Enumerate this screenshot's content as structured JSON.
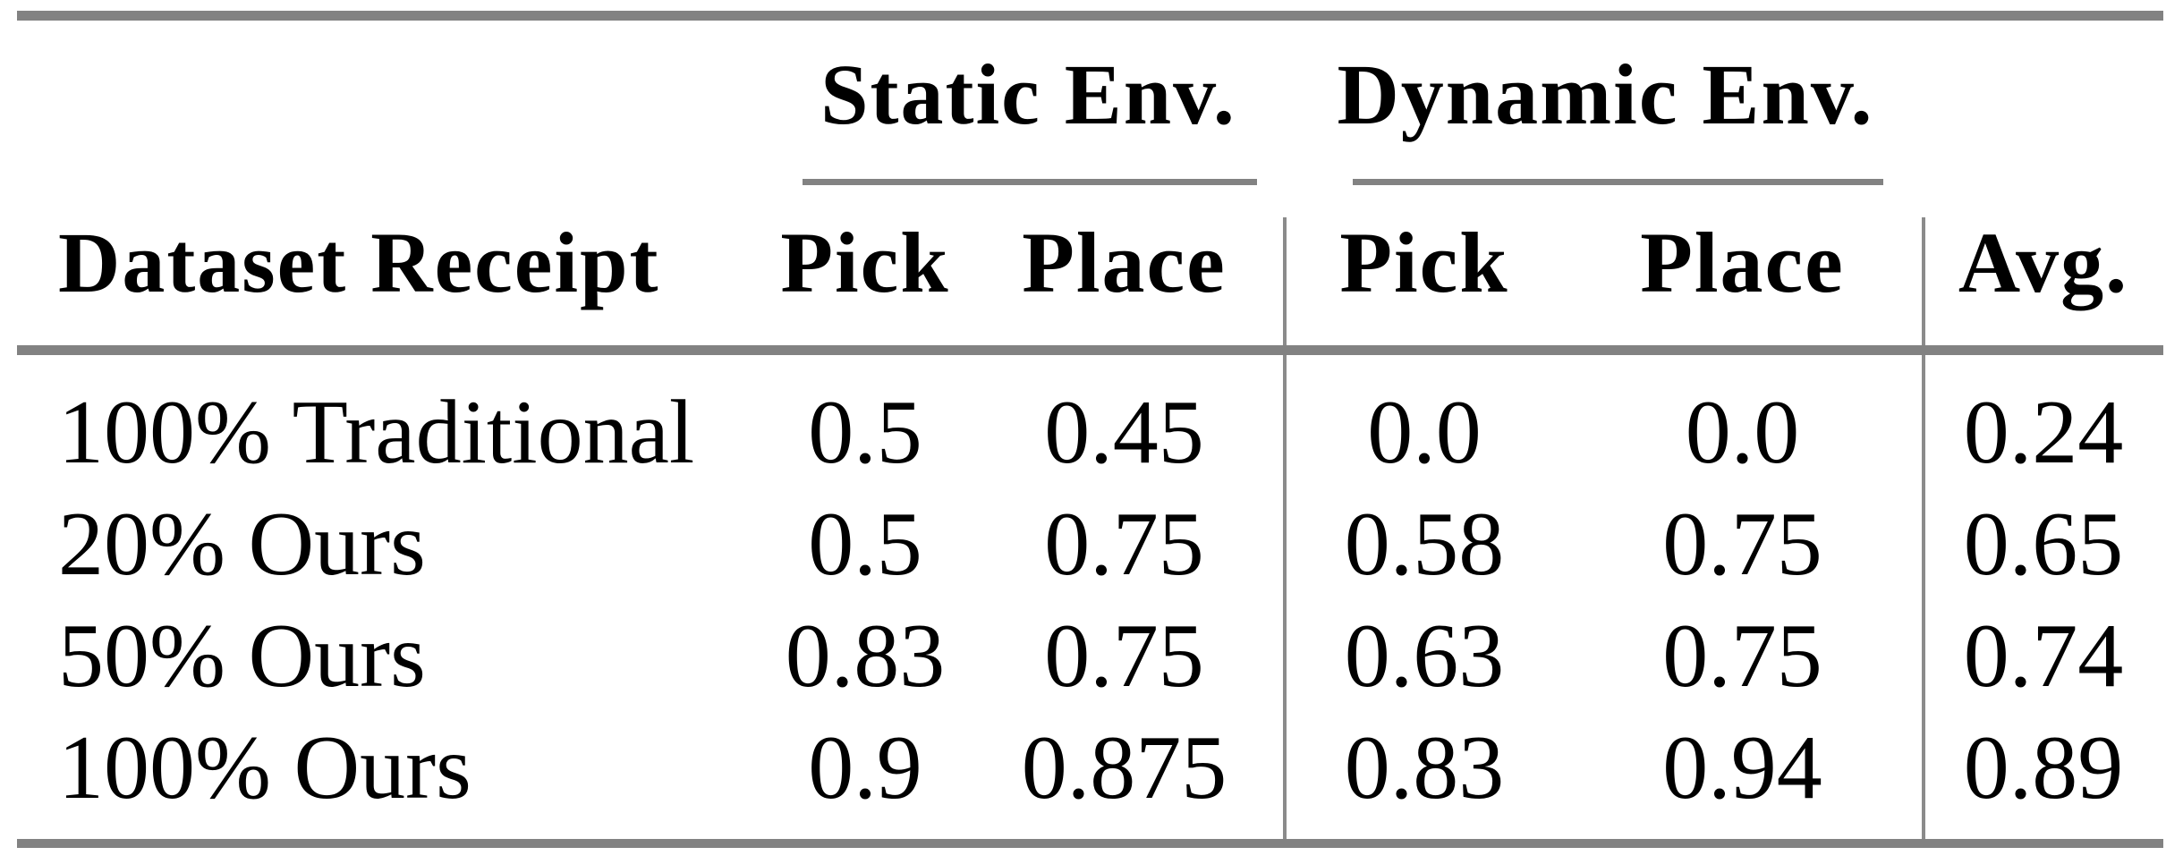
{
  "table": {
    "column_groups": [
      {
        "label": "Static Env."
      },
      {
        "label": "Dynamic Env."
      }
    ],
    "headers": {
      "row_label": "Dataset Receipt",
      "static_pick": "Pick",
      "static_place": "Place",
      "dynamic_pick": "Pick",
      "dynamic_place": "Place",
      "avg": "Avg."
    },
    "rows": [
      {
        "label": "100% Traditional",
        "static_pick": "0.5",
        "static_place": "0.45",
        "dynamic_pick": "0.0",
        "dynamic_place": "0.0",
        "avg": "0.24"
      },
      {
        "label": "20% Ours",
        "static_pick": "0.5",
        "static_place": "0.75",
        "dynamic_pick": "0.58",
        "dynamic_place": "0.75",
        "avg": "0.65"
      },
      {
        "label": "50% Ours",
        "static_pick": "0.83",
        "static_place": "0.75",
        "dynamic_pick": "0.63",
        "dynamic_place": "0.75",
        "avg": "0.74"
      },
      {
        "label": "100% Ours",
        "static_pick": "0.9",
        "static_place": "0.875",
        "dynamic_pick": "0.83",
        "dynamic_place": "0.94",
        "avg": "0.89"
      }
    ],
    "colors": {
      "rule_gray": "#828282",
      "text": "#000000",
      "background": "#ffffff"
    }
  },
  "chart_data": {
    "type": "table",
    "title": "",
    "column_groups": [
      {
        "label": "Static Env.",
        "columns": [
          "Pick",
          "Place"
        ]
      },
      {
        "label": "Dynamic Env.",
        "columns": [
          "Pick",
          "Place"
        ]
      }
    ],
    "columns": [
      "Dataset Receipt",
      "Static Env. Pick",
      "Static Env. Place",
      "Dynamic Env. Pick",
      "Dynamic Env. Place",
      "Avg."
    ],
    "rows": [
      [
        "100% Traditional",
        0.5,
        0.45,
        0.0,
        0.0,
        0.24
      ],
      [
        "20% Ours",
        0.5,
        0.75,
        0.58,
        0.75,
        0.65
      ],
      [
        "50% Ours",
        0.83,
        0.75,
        0.63,
        0.75,
        0.74
      ],
      [
        "100% Ours",
        0.9,
        0.875,
        0.83,
        0.94,
        0.89
      ]
    ]
  }
}
